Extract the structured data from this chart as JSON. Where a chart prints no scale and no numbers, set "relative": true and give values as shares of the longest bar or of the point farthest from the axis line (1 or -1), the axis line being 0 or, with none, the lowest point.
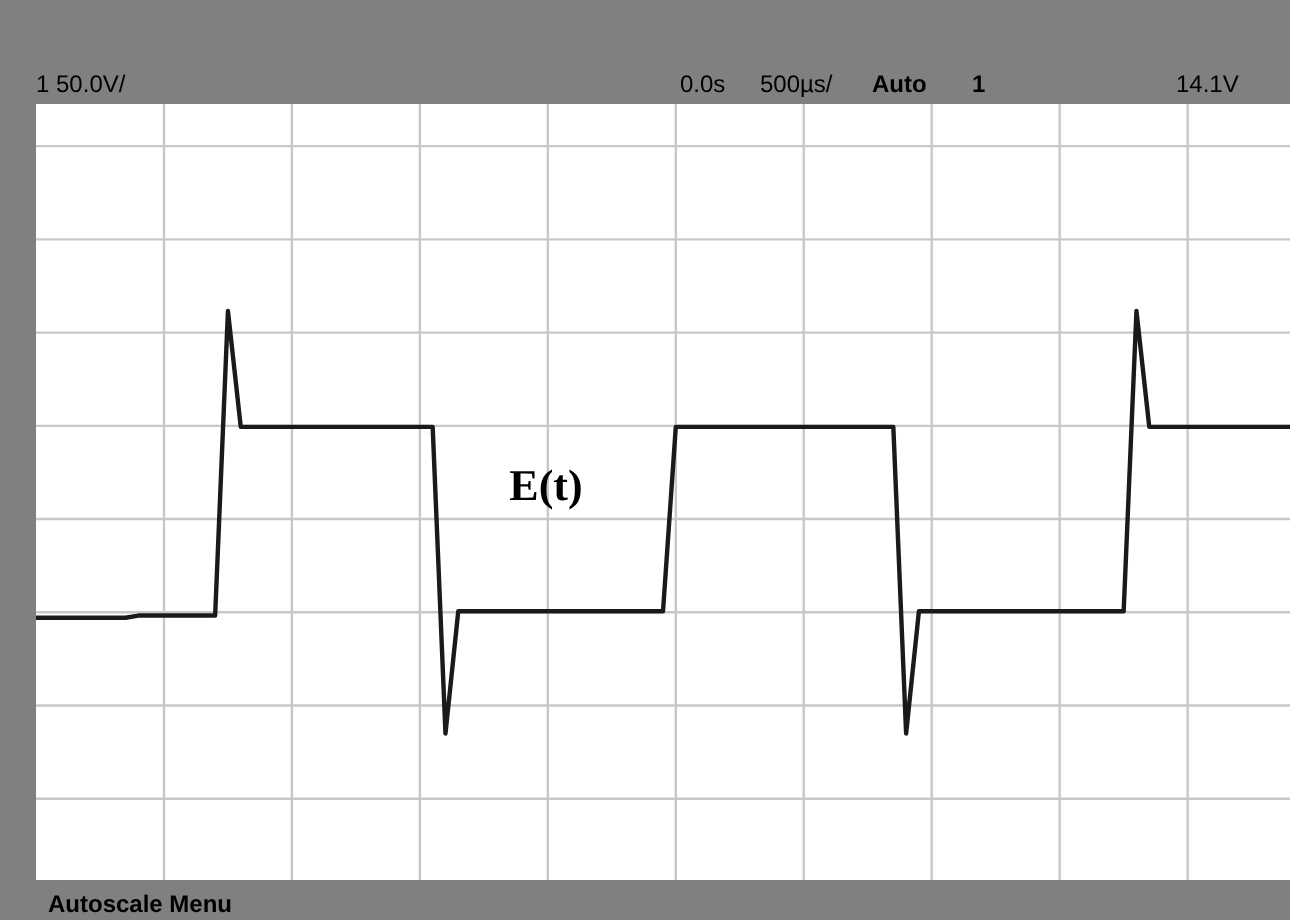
{
  "chart_data": {
    "type": "line",
    "relative": true,
    "categories": [
      null,
      null,
      null,
      null,
      null,
      null,
      null,
      null,
      null,
      null,
      null,
      null,
      null,
      null,
      null,
      null,
      null,
      null,
      null,
      null,
      null,
      null,
      null,
      null,
      null,
      null,
      null,
      null,
      null,
      null,
      null,
      null,
      null,
      null,
      null,
      null,
      null,
      null,
      null,
      null,
      null,
      null,
      null,
      null,
      null,
      null,
      null,
      null,
      null,
      null,
      null,
      null,
      null,
      null,
      null,
      null,
      null,
      null,
      null,
      null,
      null,
      null,
      null,
      null,
      null,
      null,
      null,
      null,
      null,
      null,
      null,
      null,
      null,
      null,
      null,
      null,
      null,
      null,
      null,
      null,
      null,
      null,
      null,
      null,
      null,
      null,
      null,
      null,
      null,
      null,
      null,
      null,
      null,
      null,
      null,
      null,
      null,
      null,
      null
    ],
    "series": [
      {
        "name": "E(t)",
        "color": "#1a1a1a",
        "values": [
          -0.46,
          -0.46,
          -0.46,
          -0.46,
          -0.46,
          -0.46,
          -0.46,
          -0.46,
          -0.45,
          -0.45,
          -0.45,
          -0.45,
          -0.45,
          -0.45,
          -0.45,
          0.97,
          0.43,
          0.43,
          0.43,
          0.43,
          0.43,
          0.43,
          0.43,
          0.43,
          0.43,
          0.43,
          0.43,
          0.43,
          0.43,
          0.43,
          0.43,
          0.43,
          -1,
          -0.43,
          -0.43,
          -0.43,
          -0.43,
          -0.43,
          -0.43,
          -0.43,
          -0.43,
          -0.43,
          -0.43,
          -0.43,
          -0.43,
          -0.43,
          -0.43,
          -0.43,
          -0.43,
          -0.43,
          0.43,
          0.43,
          0.43,
          0.43,
          0.43,
          0.43,
          0.43,
          0.43,
          0.43,
          0.43,
          0.43,
          0.43,
          0.43,
          0.43,
          0.43,
          0.43,
          0.43,
          0.43,
          -1,
          -0.43,
          -0.43,
          -0.43,
          -0.43,
          -0.43,
          -0.43,
          -0.43,
          -0.43,
          -0.43,
          -0.43,
          -0.43,
          -0.43,
          -0.43,
          -0.43,
          -0.43,
          -0.43,
          -0.43,
          0.97,
          0.43,
          0.43,
          0.43,
          0.43,
          0.43,
          0.43,
          0.43,
          0.43,
          0.43,
          0.43,
          0.43,
          0.43
        ]
      }
    ],
    "grid": true,
    "marker": "none",
    "line_style": "solid",
    "annotations": [
      "1 50.0V/",
      "0.0s",
      "500µs/",
      "Auto",
      "1",
      "14.1V",
      "Autoscale  Menu"
    ]
  }
}
